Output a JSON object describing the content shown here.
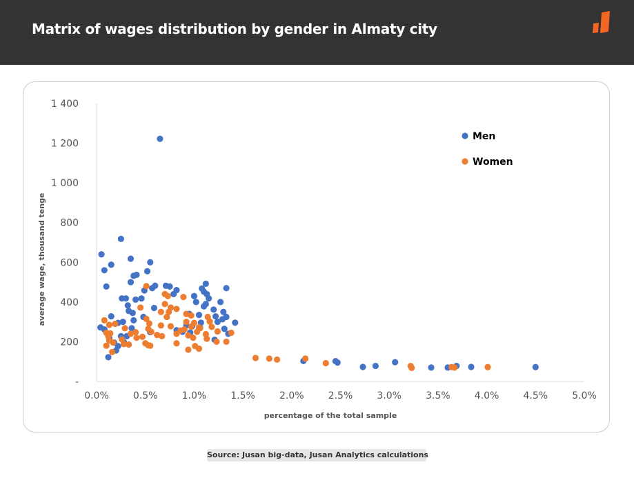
{
  "header": {
    "title": "Matrix of wages distribution by gender in Almaty city",
    "logo_color": "#f26522",
    "background": "#333333"
  },
  "source": "Source: Jusan big-data, Jusan Analytics calculations",
  "chart_data": {
    "type": "scatter",
    "xlabel": "percentage of the total sample",
    "ylabel": "average wage, thousand tenge",
    "xlim": [
      0,
      5
    ],
    "ylim": [
      0,
      1400
    ],
    "x_ticks": [
      "0.0%",
      "0.5%",
      "1.0%",
      "1.5%",
      "2.0%",
      "2.5%",
      "3.0%",
      "3.5%",
      "4.0%",
      "4.5%",
      "5.0%"
    ],
    "y_ticks": [
      "-",
      "200",
      "400",
      "600",
      "800",
      "1 000",
      "1 200",
      "1 400"
    ],
    "grid": false,
    "legend_position": "top-right",
    "series": [
      {
        "name": "Men",
        "color": "#4472c4",
        "points": [
          [
            0.65,
            1222
          ],
          [
            0.25,
            718
          ],
          [
            0.05,
            640
          ],
          [
            0.35,
            618
          ],
          [
            0.55,
            600
          ],
          [
            0.15,
            588
          ],
          [
            0.08,
            560
          ],
          [
            0.52,
            555
          ],
          [
            0.41,
            537
          ],
          [
            0.38,
            532
          ],
          [
            0.35,
            500
          ],
          [
            0.71,
            482
          ],
          [
            0.1,
            478
          ],
          [
            0.6,
            482
          ],
          [
            0.75,
            478
          ],
          [
            0.57,
            470
          ],
          [
            1.12,
            492
          ],
          [
            1.08,
            468
          ],
          [
            1.33,
            470
          ],
          [
            0.82,
            460
          ],
          [
            0.49,
            458
          ],
          [
            1.1,
            452
          ],
          [
            0.79,
            440
          ],
          [
            1.13,
            440
          ],
          [
            1.0,
            430
          ],
          [
            0.26,
            418
          ],
          [
            0.3,
            418
          ],
          [
            0.46,
            418
          ],
          [
            0.4,
            412
          ],
          [
            1.15,
            418
          ],
          [
            1.02,
            400
          ],
          [
            1.27,
            400
          ],
          [
            1.12,
            390
          ],
          [
            0.32,
            383
          ],
          [
            1.1,
            378
          ],
          [
            0.59,
            370
          ],
          [
            0.33,
            355
          ],
          [
            1.2,
            362
          ],
          [
            1.3,
            350
          ],
          [
            0.37,
            345
          ],
          [
            0.95,
            340
          ],
          [
            1.05,
            335
          ],
          [
            1.22,
            328
          ],
          [
            0.15,
            328
          ],
          [
            0.48,
            325
          ],
          [
            1.33,
            325
          ],
          [
            1.29,
            313
          ],
          [
            0.38,
            308
          ],
          [
            0.27,
            300
          ],
          [
            0.22,
            295
          ],
          [
            1.07,
            296
          ],
          [
            1.24,
            300
          ],
          [
            1.42,
            296
          ],
          [
            0.92,
            283
          ],
          [
            0.98,
            278
          ],
          [
            0.04,
            272
          ],
          [
            1.06,
            272
          ],
          [
            0.36,
            268
          ],
          [
            1.31,
            265
          ],
          [
            0.82,
            258
          ],
          [
            0.08,
            262
          ],
          [
            0.88,
            250
          ],
          [
            0.55,
            248
          ],
          [
            0.96,
            246
          ],
          [
            1.35,
            240
          ],
          [
            0.25,
            228
          ],
          [
            0.31,
            228
          ],
          [
            0.13,
            218
          ],
          [
            0.28,
            198
          ],
          [
            1.21,
            210
          ],
          [
            0.18,
            196
          ],
          [
            0.22,
            178
          ],
          [
            0.2,
            156
          ],
          [
            0.12,
            122
          ],
          [
            2.12,
            103
          ],
          [
            2.45,
            102
          ],
          [
            2.47,
            95
          ],
          [
            2.73,
            73
          ],
          [
            2.86,
            78
          ],
          [
            3.06,
            97
          ],
          [
            3.43,
            70
          ],
          [
            3.6,
            70
          ],
          [
            3.69,
            78
          ],
          [
            3.84,
            73
          ],
          [
            4.5,
            72
          ]
        ]
      },
      {
        "name": "Women",
        "color": "#ed7d31",
        "points": [
          [
            0.51,
            480
          ],
          [
            0.7,
            440
          ],
          [
            0.73,
            430
          ],
          [
            0.89,
            425
          ],
          [
            0.7,
            390
          ],
          [
            0.76,
            372
          ],
          [
            0.45,
            372
          ],
          [
            0.82,
            365
          ],
          [
            0.74,
            350
          ],
          [
            0.66,
            350
          ],
          [
            0.92,
            340
          ],
          [
            0.97,
            332
          ],
          [
            0.72,
            325
          ],
          [
            1.14,
            325
          ],
          [
            0.51,
            315
          ],
          [
            0.08,
            308
          ],
          [
            0.92,
            300
          ],
          [
            0.54,
            292
          ],
          [
            1.16,
            302
          ],
          [
            1.0,
            295
          ],
          [
            0.19,
            290
          ],
          [
            0.13,
            285
          ],
          [
            0.66,
            282
          ],
          [
            0.76,
            278
          ],
          [
            0.97,
            276
          ],
          [
            1.05,
            272
          ],
          [
            1.18,
            275
          ],
          [
            1.06,
            268
          ],
          [
            0.29,
            268
          ],
          [
            0.53,
            265
          ],
          [
            0.9,
            262
          ],
          [
            0.86,
            256
          ],
          [
            1.24,
            252
          ],
          [
            1.03,
            250
          ],
          [
            0.56,
            250
          ],
          [
            0.4,
            248
          ],
          [
            1.38,
            245
          ],
          [
            0.1,
            245
          ],
          [
            0.14,
            242
          ],
          [
            0.35,
            240
          ],
          [
            0.82,
            240
          ],
          [
            1.12,
            238
          ],
          [
            0.94,
            232
          ],
          [
            0.62,
            234
          ],
          [
            0.12,
            228
          ],
          [
            0.67,
            228
          ],
          [
            0.47,
            225
          ],
          [
            0.41,
            220
          ],
          [
            0.99,
            220
          ],
          [
            1.13,
            215
          ],
          [
            0.26,
            212
          ],
          [
            0.13,
            206
          ],
          [
            1.33,
            200
          ],
          [
            1.23,
            200
          ],
          [
            0.17,
            196
          ],
          [
            0.82,
            192
          ],
          [
            0.5,
            192
          ],
          [
            0.28,
            188
          ],
          [
            0.33,
            186
          ],
          [
            0.53,
            182
          ],
          [
            0.1,
            180
          ],
          [
            0.55,
            180
          ],
          [
            1.01,
            178
          ],
          [
            1.05,
            165
          ],
          [
            0.94,
            160
          ],
          [
            0.16,
            148
          ],
          [
            1.63,
            118
          ],
          [
            1.77,
            115
          ],
          [
            1.85,
            110
          ],
          [
            2.14,
            115
          ],
          [
            2.35,
            92
          ],
          [
            3.22,
            78
          ],
          [
            3.23,
            68
          ],
          [
            3.64,
            72
          ],
          [
            3.67,
            70
          ],
          [
            4.01,
            72
          ]
        ]
      }
    ]
  }
}
